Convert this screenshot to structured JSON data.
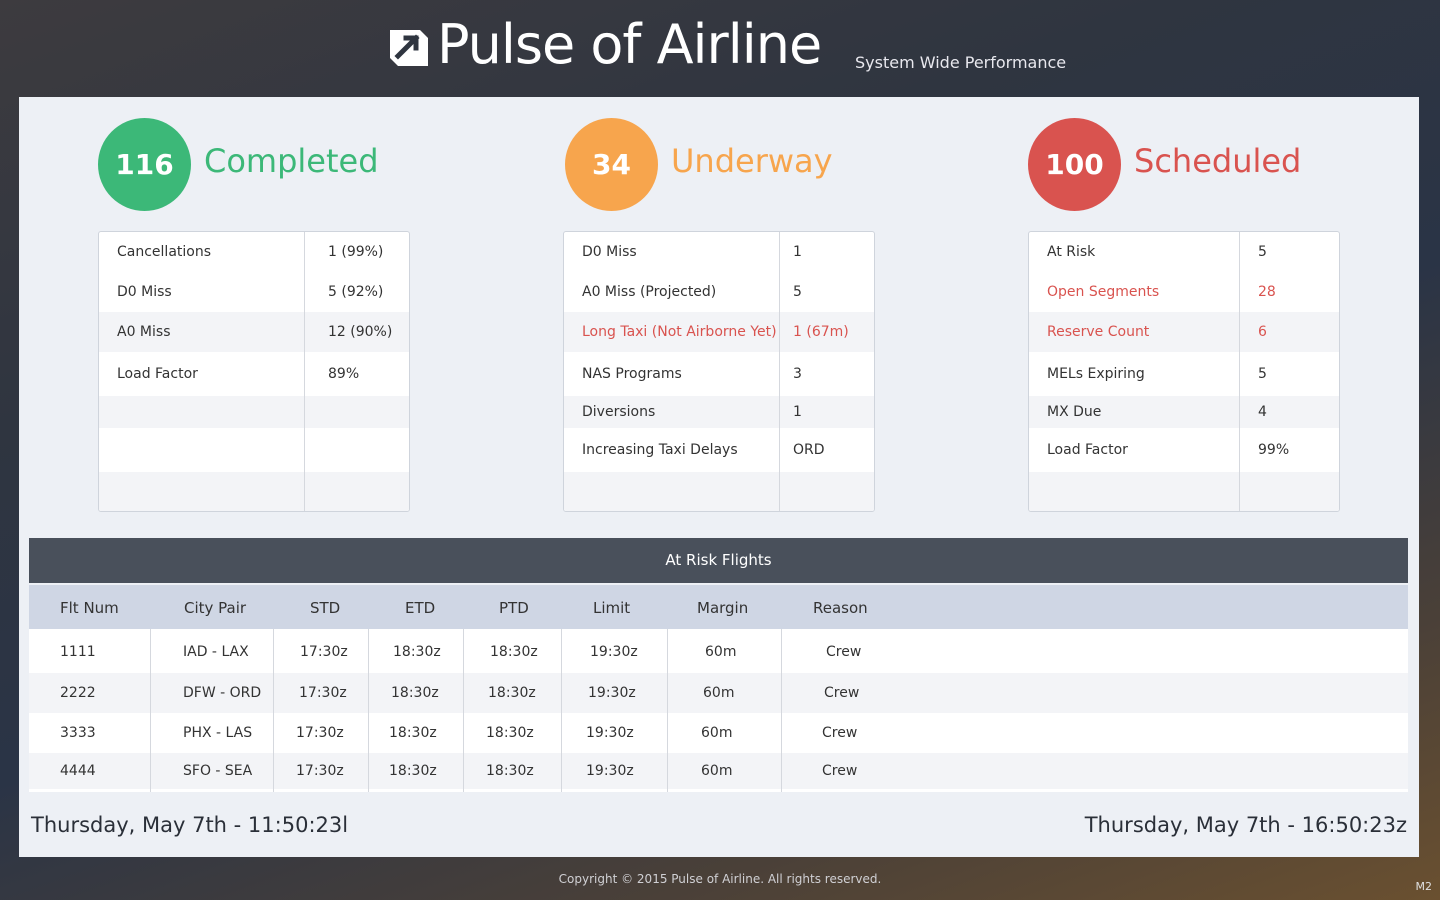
{
  "header": {
    "brand": "Pulse of Airline",
    "tagline": "System Wide Performance",
    "logo_icon": "arrow-logo-icon"
  },
  "status": {
    "completed": {
      "count": "116",
      "label": "Completed",
      "color": "#3cb878",
      "rows": [
        {
          "k": "Cancellations",
          "v": "1 (99%)"
        },
        {
          "k": "D0 Miss",
          "v": "5 (92%)"
        },
        {
          "k": "A0 Miss",
          "v": "12 (90%)"
        },
        {
          "k": "Load Factor",
          "v": "89%"
        }
      ]
    },
    "underway": {
      "count": "34",
      "label": "Underway",
      "color": "#f7a54d",
      "rows": [
        {
          "k": "D0 Miss",
          "v": "1"
        },
        {
          "k": "A0 Miss (Projected)",
          "v": "5"
        },
        {
          "k": "Long Taxi (Not Airborne Yet)",
          "v": "1 (67m)",
          "alert": true
        },
        {
          "k": "NAS Programs",
          "v": "3"
        },
        {
          "k": "Diversions",
          "v": "1"
        },
        {
          "k": "Increasing Taxi Delays",
          "v": "ORD"
        }
      ]
    },
    "scheduled": {
      "count": "100",
      "label": "Scheduled",
      "color": "#d9534f",
      "rows": [
        {
          "k": "At Risk",
          "v": "5"
        },
        {
          "k": "Open Segments",
          "v": "28",
          "alert": true
        },
        {
          "k": "Reserve Count",
          "v": "6",
          "alert": true
        },
        {
          "k": "MELs Expiring",
          "v": "5"
        },
        {
          "k": "MX Due",
          "v": "4"
        },
        {
          "k": "Load Factor",
          "v": "99%"
        }
      ]
    }
  },
  "at_risk": {
    "title": "At Risk Flights",
    "columns": [
      "Flt Num",
      "City Pair",
      "STD",
      "ETD",
      "PTD",
      "Limit",
      "Margin",
      "Reason"
    ],
    "rows": [
      [
        "1111",
        "IAD - LAX",
        "17:30z",
        "18:30z",
        "18:30z",
        "19:30z",
        "60m",
        "Crew"
      ],
      [
        "2222",
        "DFW - ORD",
        "17:30z",
        "18:30z",
        "18:30z",
        "19:30z",
        "60m",
        "Crew"
      ],
      [
        "3333",
        "PHX - LAS",
        "17:30z",
        "18:30z",
        "18:30z",
        "19:30z",
        "60m",
        "Crew"
      ],
      [
        "4444",
        "SFO - SEA",
        "17:30z",
        "18:30z",
        "18:30z",
        "19:30z",
        "60m",
        "Crew"
      ]
    ]
  },
  "clocks": {
    "local": "Thursday, May 7th   -   11:50:23l",
    "zulu": "Thursday, May 7th  -  16:50:23z"
  },
  "footer": {
    "copyright": "Copyright  ©  2015  Pulse of Airline.    All rights reserved.",
    "build": "M2"
  }
}
